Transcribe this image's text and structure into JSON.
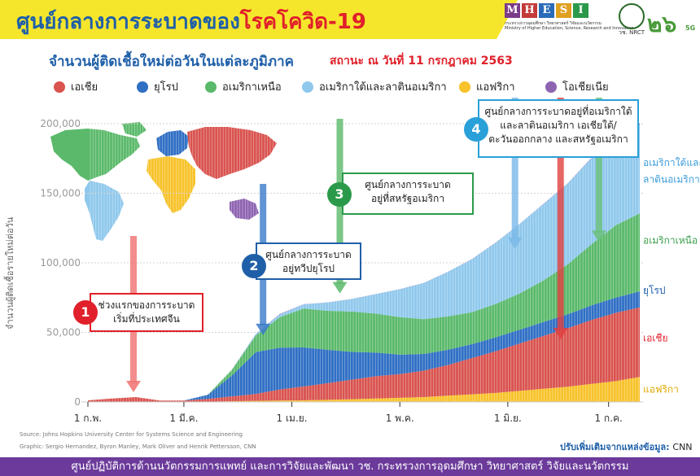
{
  "header": {
    "title_main": "ศูนย์กลางการระบาดของ",
    "title_accent": "โรคโควิด-19",
    "subtitle": "จำนวนผู้ติดเชื้อใหม่ต่อวันในแต่ละภูมิภาค",
    "status": "สถานะ ณ วันที่ 11 กรกฎาคม 2563",
    "logos": {
      "mhesi_letters": [
        "M",
        "H",
        "E",
        "S",
        "I"
      ],
      "mhesi_sub1": "กระทรวงการอุดมศึกษา วิทยาศาสตร์ วิจัยและนวัตกรรม",
      "mhesi_sub2": "Ministry of Higher Education, Science, Research and Innovation",
      "nrct": "วช. NRCT",
      "wc": "๒๖",
      "wc_5g": "5G"
    }
  },
  "legend": [
    {
      "label": "เอเชีย",
      "color": "#d9534f"
    },
    {
      "label": "ยุโรป",
      "color": "#2f6fc4"
    },
    {
      "label": "อเมริกาเหนือ",
      "color": "#5ab96a"
    },
    {
      "label": "อเมริกาใต้และลาตินอเมริกา",
      "color": "#8fc8ec"
    },
    {
      "label": "แอฟริกา",
      "color": "#f7c22a"
    },
    {
      "label": "โอเชียเนีย",
      "color": "#8e64b2"
    }
  ],
  "chart_data": {
    "type": "area",
    "ylabel": "จำนวนผู้ติดเชื้อรายใหม่ต่อวัน",
    "ylim": [
      0,
      200000
    ],
    "yticks": [
      0,
      50000,
      100000,
      150000,
      200000
    ],
    "ytick_labels": [
      "0",
      "50,000",
      "100,000",
      "150,000",
      "200,000"
    ],
    "x_tick_labels": [
      "1 ก.พ.",
      "1 มี.ค.",
      "1 เม.ย.",
      "1 พ.ค.",
      "1 มิ.ย.",
      "1 ก.ค."
    ],
    "x_tick_weeks": [
      0,
      4,
      8.5,
      13,
      17.5,
      21.7
    ],
    "x_unit": "week since 1 ก.พ.",
    "x": [
      0,
      1,
      2,
      3,
      4,
      5,
      6,
      7,
      8,
      9,
      10,
      11,
      12,
      13,
      14,
      15,
      16,
      17,
      18,
      19,
      20,
      21,
      22,
      23
    ],
    "stack_order": [
      "แอฟริกา",
      "เอเชีย",
      "ยุโรป",
      "อเมริกาเหนือ",
      "อเมริกาใต้และลาตินอเมริกา",
      "โอเชียเนีย"
    ],
    "series": [
      {
        "name": "แอฟริกา",
        "color": "#f7c22a",
        "values": [
          0,
          0,
          0,
          0,
          0,
          200,
          500,
          800,
          1000,
          1200,
          1500,
          2000,
          2500,
          3000,
          3500,
          4500,
          5500,
          6500,
          8000,
          9500,
          11000,
          13000,
          15000,
          18000
        ]
      },
      {
        "name": "เอเชีย",
        "color": "#d9534f",
        "values": [
          1200,
          2500,
          3500,
          1000,
          1000,
          2000,
          3500,
          5000,
          8000,
          10000,
          12000,
          14000,
          16000,
          17000,
          19000,
          22000,
          26000,
          30000,
          34000,
          38000,
          42000,
          46000,
          49000,
          50000
        ]
      },
      {
        "name": "ยุโรป",
        "color": "#2f6fc4",
        "values": [
          0,
          0,
          0,
          0,
          0,
          3000,
          15000,
          30000,
          30000,
          28000,
          24000,
          20000,
          17000,
          14000,
          12000,
          11000,
          10000,
          10000,
          10000,
          10000,
          10000,
          10500,
          11000,
          11500
        ]
      },
      {
        "name": "อเมริกาเหนือ",
        "color": "#5ab96a",
        "values": [
          0,
          0,
          0,
          0,
          0,
          0,
          4000,
          12000,
          22000,
          28000,
          28000,
          29000,
          28000,
          27000,
          25000,
          24000,
          23000,
          24000,
          26000,
          30000,
          36000,
          44000,
          52000,
          56000
        ]
      },
      {
        "name": "อเมริกาใต้และลาตินอเมริกา",
        "color": "#8fc8ec",
        "values": [
          0,
          0,
          0,
          0,
          0,
          0,
          200,
          1000,
          2000,
          3000,
          6000,
          9000,
          14000,
          20000,
          26000,
          32000,
          38000,
          44000,
          50000,
          55000,
          58000,
          62000,
          65000,
          64000
        ]
      },
      {
        "name": "โอเชียเนีย",
        "color": "#8e64b2",
        "values": [
          0,
          0,
          0,
          0,
          0,
          0,
          50,
          200,
          300,
          100,
          50,
          50,
          50,
          100,
          100,
          100,
          100,
          100,
          100,
          150,
          200,
          300,
          500,
          800
        ]
      }
    ],
    "right_labels": [
      {
        "text": "อเมริกาใต้และ",
        "color": "#3a9ad8",
        "value": 172000
      },
      {
        "text": "ลาตินอเมริกา",
        "color": "#3a9ad8",
        "value": 160000
      },
      {
        "text": "อเมริกาเหนือ",
        "color": "#3a9e4a",
        "value": 116000
      },
      {
        "text": "ยุโรป",
        "color": "#1f5fa8",
        "value": 80000
      },
      {
        "text": "เอเชีย",
        "color": "#e0202a",
        "value": 46000
      },
      {
        "text": "แอฟริกา",
        "color": "#e0a800",
        "value": 9000
      }
    ],
    "annotations": [
      {
        "num": "1",
        "lines": [
          "ช่วงแรกของการระบาด",
          "เริ่มที่ประเทศจีน"
        ],
        "color": "#e0202a",
        "arrow_color": "#f07070",
        "week": 1.9,
        "target_value": 7000
      },
      {
        "num": "2",
        "lines": [
          "ศูนย์กลางการระบาด",
          "อยู่ทวีปยุโรป"
        ],
        "color": "#1f5fa8",
        "arrow_color": "#3a7ac8",
        "week": 7.3,
        "target_value": 48000
      },
      {
        "num": "3",
        "lines": [
          "ศูนย์กลางการระบาด",
          "อยู่ที่สหรัฐอเมริกา"
        ],
        "color": "#2a9a4a",
        "arrow_color": "#5ab96a",
        "week": 10.5,
        "target_value": 78000
      },
      {
        "num": "4",
        "lines": [
          "ศูนย์กลางการระบาดอยู่ที่อเมริกาใต้",
          "และลาตินอเมริกา เอเชียใต้/",
          "ตะวันออกกลาง และสหรัฐอเมริกา"
        ],
        "color": "#2aa0d8",
        "arrow_color": "#7ab8e8",
        "week": 17.8,
        "target_value": 110000
      }
    ],
    "extra_arrows": [
      {
        "color": "#e04040",
        "week": 19.7,
        "from_value": 190000,
        "target_value": 45000
      },
      {
        "color": "#6ac07a",
        "week": 21.3,
        "from_value": 170000,
        "target_value": 115000
      }
    ]
  },
  "source": {
    "line1": "Source: Johns Hopkins University Center for Systems Science and Engineering",
    "line2": "Graphic: Sergio Hernandez, Byron Manley, Mark Oliver and Henrik Pettersson, CNN"
  },
  "adapted": {
    "prefix": "ปรับเพิ่มเติมจากแหล่งข้อมูล:",
    "source": "CNN"
  },
  "footer": "ศูนย์ปฏิบัติการด้านนวัตกรรมการแพทย์ และการวิจัยและพัฒนา วช.   กระทรวงการอุดมศึกษา วิทยาศาสตร์ วิจัยและนวัตกรรม"
}
